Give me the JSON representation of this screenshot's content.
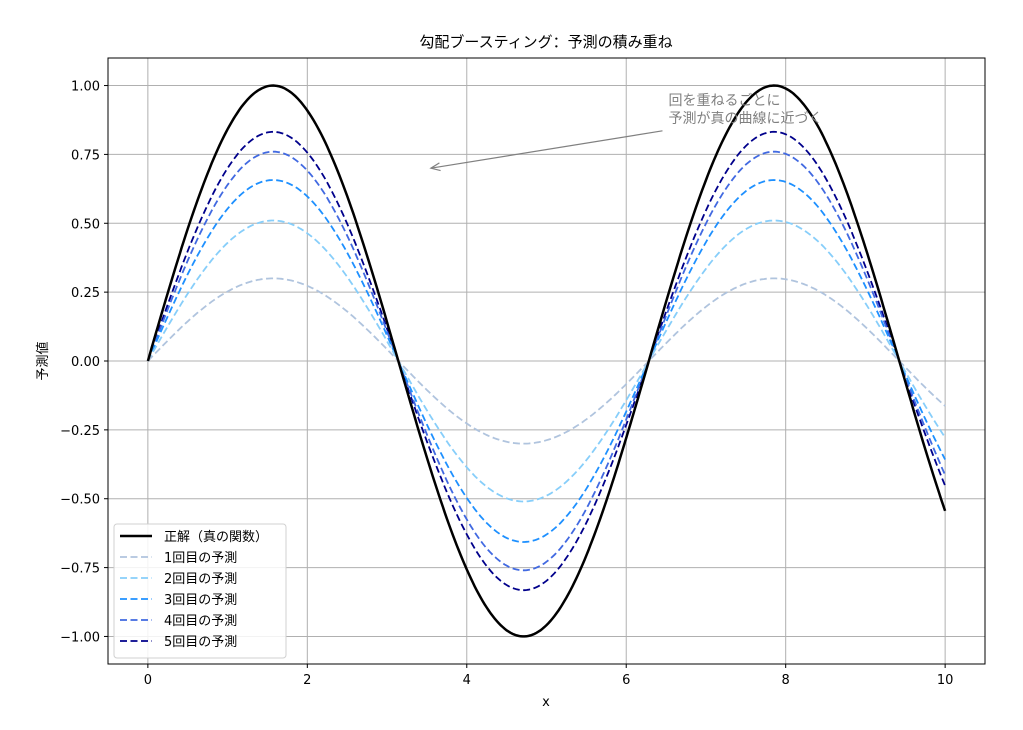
{
  "chart_data": {
    "type": "line",
    "title": "勾配ブースティング：予測の積み重ね",
    "xlabel": "x",
    "ylabel": "予測値",
    "xlim": [
      -0.5,
      10.5
    ],
    "ylim": [
      -1.1,
      1.1
    ],
    "xticks": [
      0,
      2,
      4,
      6,
      8,
      10
    ],
    "xtick_labels": [
      "0",
      "2",
      "4",
      "6",
      "8",
      "10"
    ],
    "yticks": [
      1.0,
      0.75,
      0.5,
      0.25,
      0.0,
      -0.25,
      -0.5,
      -0.75,
      -1.0
    ],
    "ytick_labels": [
      "1.00",
      "0.75",
      "0.50",
      "0.25",
      "0.00",
      "−0.25",
      "−0.50",
      "−0.75",
      "−1.00"
    ],
    "grid": true,
    "legend_position": "lower-left",
    "function": "sin(x), x from 0 to 10",
    "series": [
      {
        "name": "正解（真の関数）",
        "scale": 1.0,
        "color": "#000000",
        "style": "solid"
      },
      {
        "name": "1回目の予測",
        "scale": 0.3,
        "color": "#b0c4de",
        "style": "dashed"
      },
      {
        "name": "2回目の予測",
        "scale": 0.51,
        "color": "#87cefa",
        "style": "dashed"
      },
      {
        "name": "3回目の予測",
        "scale": 0.657,
        "color": "#1e90ff",
        "style": "dashed"
      },
      {
        "name": "4回目の予測",
        "scale": 0.76,
        "color": "#4169e1",
        "style": "dashed"
      },
      {
        "name": "5回目の予測",
        "scale": 0.832,
        "color": "#00008b",
        "style": "dashed"
      }
    ],
    "annotation": {
      "lines": [
        "回を重ねるごとに",
        "予測が真の曲線に近づく"
      ],
      "text_at": [
        6.53,
        0.93
      ],
      "arrow_to": [
        3.55,
        0.7
      ],
      "color": "#808080"
    }
  }
}
